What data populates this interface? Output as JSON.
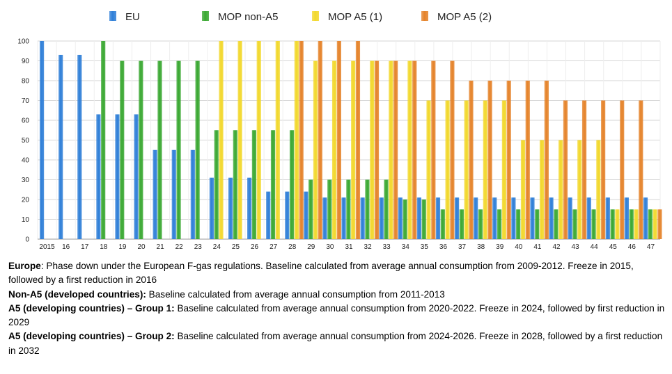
{
  "chart_data": {
    "type": "bar",
    "categories": [
      "2015",
      "16",
      "17",
      "18",
      "19",
      "20",
      "21",
      "22",
      "23",
      "24",
      "25",
      "26",
      "27",
      "28",
      "29",
      "30",
      "31",
      "32",
      "33",
      "34",
      "35",
      "36",
      "37",
      "38",
      "39",
      "40",
      "41",
      "42",
      "43",
      "44",
      "45",
      "46",
      "47"
    ],
    "ylim": [
      0,
      100
    ],
    "yticks": [
      0,
      10,
      20,
      30,
      40,
      50,
      60,
      70,
      80,
      90,
      100
    ],
    "grid": true,
    "legend_position": "top",
    "series": [
      {
        "name": "EU",
        "color": "#2f7fd8",
        "values": [
          100,
          93,
          93,
          63,
          63,
          63,
          45,
          45,
          45,
          31,
          31,
          31,
          24,
          24,
          24,
          21,
          21,
          21,
          21,
          21,
          21,
          21,
          21,
          21,
          21,
          21,
          21,
          21,
          21,
          21,
          21,
          21,
          21
        ]
      },
      {
        "name": "MOP non-A5",
        "color": "#3aa832",
        "values": [
          null,
          null,
          null,
          100,
          90,
          90,
          90,
          90,
          90,
          55,
          55,
          55,
          55,
          55,
          30,
          30,
          30,
          30,
          30,
          20,
          20,
          15,
          15,
          15,
          15,
          15,
          15,
          15,
          15,
          15,
          15,
          15,
          15
        ]
      },
      {
        "name": "MOP A5 (1)",
        "color": "#f2d82c",
        "values": [
          null,
          null,
          null,
          null,
          null,
          null,
          null,
          null,
          null,
          100,
          100,
          100,
          100,
          100,
          90,
          90,
          90,
          90,
          90,
          90,
          70,
          70,
          70,
          70,
          70,
          50,
          50,
          50,
          50,
          50,
          15,
          15,
          15
        ]
      },
      {
        "name": "MOP A5 (2)",
        "color": "#e5832a",
        "values": [
          null,
          null,
          null,
          null,
          null,
          null,
          null,
          null,
          null,
          null,
          null,
          null,
          null,
          100,
          100,
          100,
          100,
          90,
          90,
          90,
          90,
          90,
          80,
          80,
          80,
          80,
          80,
          70,
          70,
          70,
          70,
          70,
          15
        ]
      }
    ]
  },
  "notes": [
    {
      "bold": "Europe",
      "text": ": Phase down under the European F-gas regulations. Baseline calculated from average annual consumption from 2009-2012. Freeze in 2015, followed by a first reduction in 2016"
    },
    {
      "bold": "Non-A5 (developed countries):",
      "text": " Baseline calculated from average annual consumption from 2011-2013"
    },
    {
      "bold": "A5 (developing countries) – Group 1:",
      "text": " Baseline calculated from average annual consumption from 2020-2022. Freeze in 2024, followed by first reduction in 2029"
    },
    {
      "bold": "A5 (developing countries) – Group 2:",
      "text": " Baseline calculated from average annual consumption from 2024-2026. Freeze in 2028, followed by a first reduction in 2032"
    }
  ]
}
